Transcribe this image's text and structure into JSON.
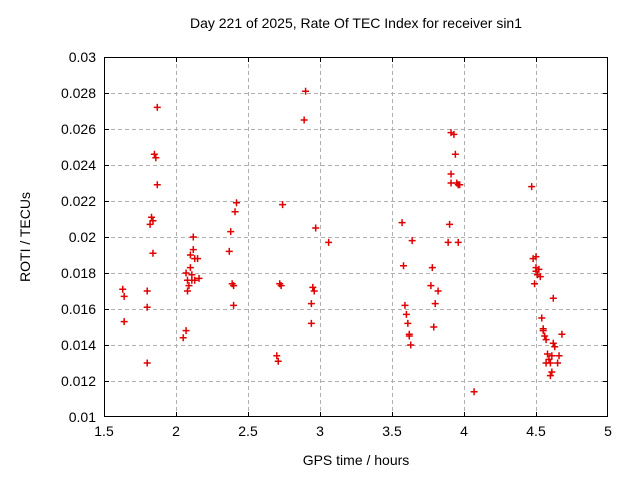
{
  "chart_data": {
    "type": "scatter",
    "title": "Day 221 of 2025, Rate Of TEC Index for receiver sin1",
    "xlabel": "GPS time / hours",
    "ylabel": "ROTI / TECUs",
    "xlim": [
      1.5,
      5
    ],
    "ylim": [
      0.01,
      0.03
    ],
    "xticks": {
      "values": [
        1.5,
        2,
        2.5,
        3,
        3.5,
        4,
        4.5,
        5
      ],
      "labels": [
        "1.5",
        "2",
        "2.5",
        "3",
        "3.5",
        "4",
        "4.5",
        "5"
      ]
    },
    "yticks": {
      "values": [
        0.01,
        0.012,
        0.014,
        0.016,
        0.018,
        0.02,
        0.022,
        0.024,
        0.026,
        0.028,
        0.03
      ],
      "labels": [
        "0.01",
        "0.012",
        "0.014",
        "0.016",
        "0.018",
        "0.02",
        "0.022",
        "0.024",
        "0.026",
        "0.028",
        "0.03"
      ]
    },
    "grid": true,
    "legend_position": "none",
    "marker": "plus",
    "colors": {
      "marker": "#e00000",
      "grid": "#b0b0b0",
      "axis": "#000000",
      "background": "#ffffff"
    },
    "series": [
      {
        "name": "ROTI",
        "points": [
          [
            1.63,
            0.0171
          ],
          [
            1.64,
            0.0167
          ],
          [
            1.64,
            0.0153
          ],
          [
            1.8,
            0.017
          ],
          [
            1.8,
            0.0161
          ],
          [
            1.8,
            0.013
          ],
          [
            1.87,
            0.0272
          ],
          [
            1.85,
            0.0246
          ],
          [
            1.86,
            0.0244
          ],
          [
            1.87,
            0.0229
          ],
          [
            1.82,
            0.0207
          ],
          [
            1.83,
            0.0211
          ],
          [
            1.84,
            0.0209
          ],
          [
            1.84,
            0.0191
          ],
          [
            2.12,
            0.02
          ],
          [
            2.12,
            0.0193
          ],
          [
            2.1,
            0.019
          ],
          [
            2.13,
            0.0188
          ],
          [
            2.15,
            0.0188
          ],
          [
            2.1,
            0.0183
          ],
          [
            2.07,
            0.018
          ],
          [
            2.11,
            0.0179
          ],
          [
            2.08,
            0.0176
          ],
          [
            2.11,
            0.0176
          ],
          [
            2.13,
            0.0176
          ],
          [
            2.16,
            0.0177
          ],
          [
            2.09,
            0.0173
          ],
          [
            2.08,
            0.017
          ],
          [
            2.07,
            0.0148
          ],
          [
            2.05,
            0.0144
          ],
          [
            2.42,
            0.0219
          ],
          [
            2.41,
            0.0214
          ],
          [
            2.38,
            0.0203
          ],
          [
            2.37,
            0.0192
          ],
          [
            2.39,
            0.0174
          ],
          [
            2.4,
            0.0173
          ],
          [
            2.4,
            0.0162
          ],
          [
            2.74,
            0.0218
          ],
          [
            2.72,
            0.0174
          ],
          [
            2.73,
            0.0173
          ],
          [
            2.7,
            0.0134
          ],
          [
            2.71,
            0.0131
          ],
          [
            2.9,
            0.0281
          ],
          [
            2.89,
            0.0265
          ],
          [
            2.97,
            0.0205
          ],
          [
            3.06,
            0.0197
          ],
          [
            2.95,
            0.0172
          ],
          [
            2.96,
            0.017
          ],
          [
            2.94,
            0.0163
          ],
          [
            2.94,
            0.0152
          ],
          [
            3.57,
            0.0208
          ],
          [
            3.64,
            0.0198
          ],
          [
            3.58,
            0.0184
          ],
          [
            3.59,
            0.0162
          ],
          [
            3.6,
            0.0157
          ],
          [
            3.61,
            0.0152
          ],
          [
            3.62,
            0.0146
          ],
          [
            3.62,
            0.0145
          ],
          [
            3.63,
            0.014
          ],
          [
            3.78,
            0.0183
          ],
          [
            3.77,
            0.0173
          ],
          [
            3.82,
            0.017
          ],
          [
            3.8,
            0.0163
          ],
          [
            3.79,
            0.015
          ],
          [
            3.91,
            0.0258
          ],
          [
            3.93,
            0.0257
          ],
          [
            3.94,
            0.0246
          ],
          [
            3.91,
            0.0235
          ],
          [
            3.91,
            0.023
          ],
          [
            3.95,
            0.023
          ],
          [
            3.96,
            0.0229
          ],
          [
            3.97,
            0.0229
          ],
          [
            3.9,
            0.0207
          ],
          [
            3.89,
            0.0197
          ],
          [
            3.96,
            0.0197
          ],
          [
            4.07,
            0.0114
          ],
          [
            4.47,
            0.0228
          ],
          [
            4.48,
            0.0188
          ],
          [
            4.5,
            0.0189
          ],
          [
            4.5,
            0.0183
          ],
          [
            4.52,
            0.0182
          ],
          [
            4.5,
            0.0181
          ],
          [
            4.51,
            0.0179
          ],
          [
            4.53,
            0.0178
          ],
          [
            4.49,
            0.0174
          ],
          [
            4.62,
            0.0166
          ],
          [
            4.54,
            0.0155
          ],
          [
            4.55,
            0.0149
          ],
          [
            4.55,
            0.0148
          ],
          [
            4.56,
            0.0145
          ],
          [
            4.57,
            0.0143
          ],
          [
            4.68,
            0.0146
          ],
          [
            4.62,
            0.0141
          ],
          [
            4.63,
            0.0139
          ],
          [
            4.58,
            0.0135
          ],
          [
            4.61,
            0.0134
          ],
          [
            4.66,
            0.0134
          ],
          [
            4.59,
            0.0132
          ],
          [
            4.57,
            0.013
          ],
          [
            4.6,
            0.013
          ],
          [
            4.65,
            0.013
          ],
          [
            4.61,
            0.0125
          ],
          [
            4.6,
            0.0123
          ]
        ]
      }
    ]
  }
}
